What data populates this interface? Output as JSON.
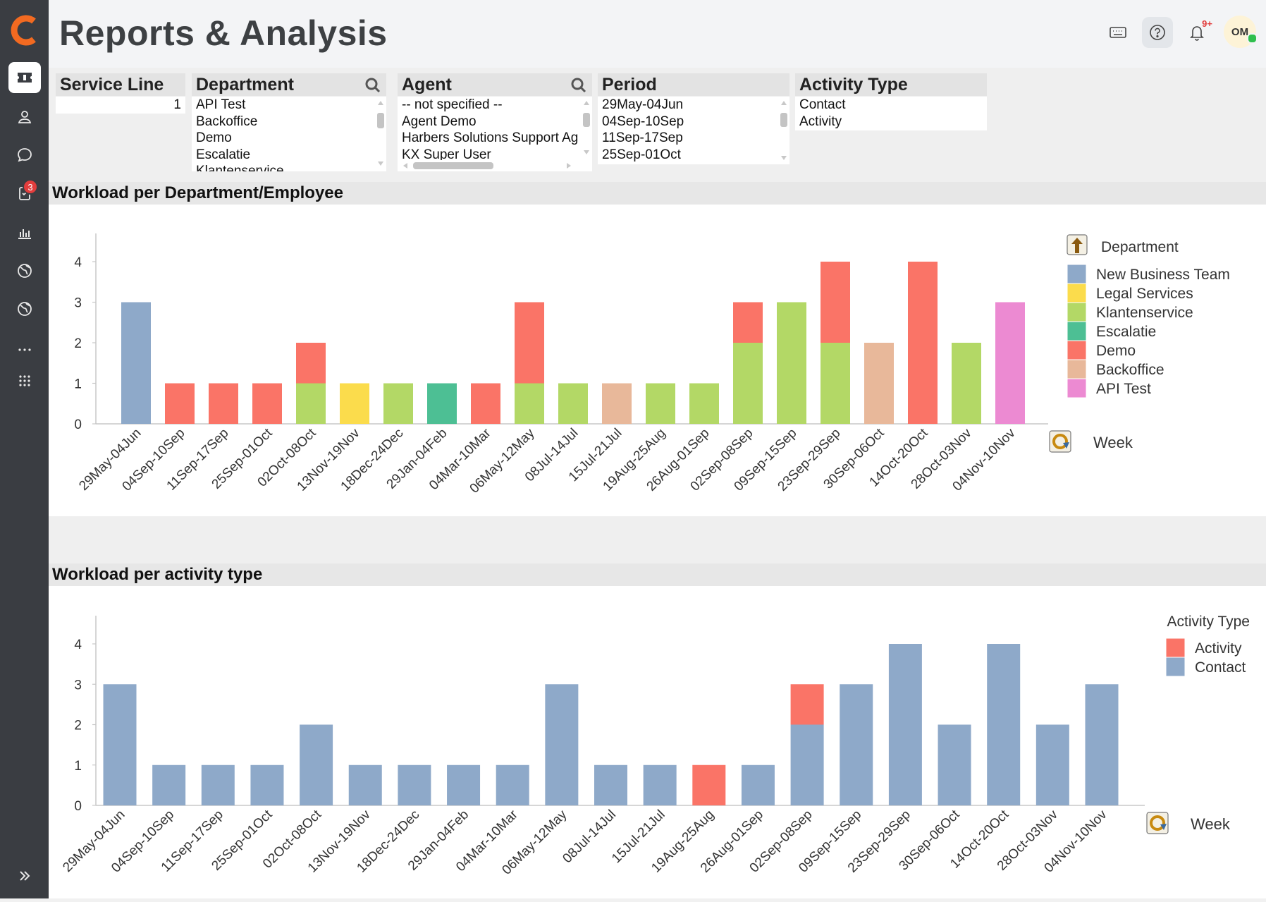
{
  "app": {
    "title": "Reports & Analysis",
    "logo_letter": "C",
    "accent_color": "#f26a21"
  },
  "sidebar": {
    "items": [
      {
        "icon": "ticket-icon",
        "active": true
      },
      {
        "icon": "user-icon"
      },
      {
        "icon": "chat-icon"
      },
      {
        "icon": "task-icon",
        "badge": "3"
      },
      {
        "icon": "bar-chart-icon"
      },
      {
        "icon": "globe-icon"
      },
      {
        "icon": "globe-icon"
      },
      {
        "icon": "more-icon"
      },
      {
        "icon": "apps-grid-icon"
      }
    ],
    "expand_icon": "double-chevron-right-icon"
  },
  "topbar": {
    "notification_badge": "9+",
    "avatar_initials": "OM"
  },
  "filters": {
    "service_line": {
      "label": "Service Line",
      "value": "1"
    },
    "department": {
      "label": "Department",
      "items": [
        "API Test",
        "Backoffice",
        "Demo",
        "Escalatie",
        "Klantenservice"
      ]
    },
    "agent": {
      "label": "Agent",
      "items": [
        "-- not specified --",
        "Agent Demo",
        "Harbers Solutions Support Ag",
        "KX Super User"
      ]
    },
    "period": {
      "label": "Period",
      "items": [
        "29May-04Jun",
        "04Sep-10Sep",
        "11Sep-17Sep",
        "25Sep-01Oct"
      ]
    },
    "activity_type": {
      "label": "Activity Type",
      "items": [
        "Contact",
        "Activity"
      ]
    }
  },
  "sections": {
    "chart1_title": "Workload per Department/Employee",
    "chart2_title": "Workload per activity type"
  },
  "chart_data": [
    {
      "type": "bar",
      "stacked": true,
      "title": "Workload per Department/Employee",
      "xlabel": "Week",
      "ylim": [
        0,
        4
      ],
      "yticks": [
        0,
        1,
        2,
        3,
        4
      ],
      "legend_title": "Department",
      "legend_position": "right",
      "categories": [
        "29May-04Jun",
        "04Sep-10Sep",
        "11Sep-17Sep",
        "25Sep-01Oct",
        "02Oct-08Oct",
        "13Nov-19Nov",
        "18Dec-24Dec",
        "29Jan-04Feb",
        "04Mar-10Mar",
        "06May-12May",
        "08Jul-14Jul",
        "15Jul-21Jul",
        "19Aug-25Aug",
        "26Aug-01Sep",
        "02Sep-08Sep",
        "09Sep-15Sep",
        "23Sep-29Sep",
        "30Sep-06Oct",
        "14Oct-20Oct",
        "28Oct-03Nov",
        "04Nov-10Nov"
      ],
      "series": [
        {
          "name": "New Business Team",
          "color": "#8ea9c9",
          "values": [
            3,
            0,
            0,
            0,
            0,
            0,
            0,
            0,
            0,
            0,
            0,
            0,
            0,
            0,
            0,
            0,
            0,
            0,
            0,
            0,
            0
          ]
        },
        {
          "name": "Legal Services",
          "color": "#fbdc4c",
          "values": [
            0,
            0,
            0,
            0,
            0,
            1,
            0,
            0,
            0,
            0,
            0,
            0,
            0,
            0,
            0,
            0,
            0,
            0,
            0,
            0,
            0
          ]
        },
        {
          "name": "Klantenservice",
          "color": "#b3d866",
          "values": [
            0,
            0,
            0,
            0,
            1,
            0,
            1,
            0,
            0,
            1,
            1,
            0,
            1,
            1,
            2,
            3,
            2,
            0,
            0,
            2,
            0
          ]
        },
        {
          "name": "Escalatie",
          "color": "#4dbf94",
          "values": [
            0,
            0,
            0,
            0,
            0,
            0,
            0,
            1,
            0,
            0,
            0,
            0,
            0,
            0,
            0,
            0,
            0,
            0,
            0,
            0,
            0
          ]
        },
        {
          "name": "Demo",
          "color": "#fa7467",
          "values": [
            0,
            1,
            1,
            1,
            1,
            0,
            0,
            0,
            1,
            2,
            0,
            0,
            0,
            0,
            1,
            0,
            2,
            0,
            4,
            0,
            0
          ]
        },
        {
          "name": "Backoffice",
          "color": "#e8b89a",
          "values": [
            0,
            0,
            0,
            0,
            0,
            0,
            0,
            0,
            0,
            0,
            0,
            1,
            0,
            0,
            0,
            0,
            0,
            2,
            0,
            0,
            0
          ]
        },
        {
          "name": "API Test",
          "color": "#ec8ad2",
          "values": [
            0,
            0,
            0,
            0,
            0,
            0,
            0,
            0,
            0,
            0,
            0,
            0,
            0,
            0,
            0,
            0,
            0,
            0,
            0,
            0,
            3
          ]
        }
      ]
    },
    {
      "type": "bar",
      "stacked": true,
      "title": "Workload per activity type",
      "xlabel": "Week",
      "ylim": [
        0,
        4
      ],
      "yticks": [
        0,
        1,
        2,
        3,
        4
      ],
      "legend_title": "Activity Type",
      "legend_position": "right",
      "categories": [
        "29May-04Jun",
        "04Sep-10Sep",
        "11Sep-17Sep",
        "25Sep-01Oct",
        "02Oct-08Oct",
        "13Nov-19Nov",
        "18Dec-24Dec",
        "29Jan-04Feb",
        "04Mar-10Mar",
        "06May-12May",
        "08Jul-14Jul",
        "15Jul-21Jul",
        "19Aug-25Aug",
        "26Aug-01Sep",
        "02Sep-08Sep",
        "09Sep-15Sep",
        "23Sep-29Sep",
        "30Sep-06Oct",
        "14Oct-20Oct",
        "28Oct-03Nov",
        "04Nov-10Nov"
      ],
      "series": [
        {
          "name": "Contact",
          "color": "#8ea9c9",
          "values": [
            3,
            1,
            1,
            1,
            2,
            1,
            1,
            1,
            1,
            3,
            1,
            1,
            0,
            1,
            2,
            3,
            4,
            2,
            4,
            2,
            3
          ]
        },
        {
          "name": "Activity",
          "color": "#fa7467",
          "values": [
            0,
            0,
            0,
            0,
            0,
            0,
            0,
            0,
            0,
            0,
            0,
            0,
            1,
            0,
            1,
            0,
            0,
            0,
            0,
            0,
            0
          ]
        }
      ]
    }
  ]
}
